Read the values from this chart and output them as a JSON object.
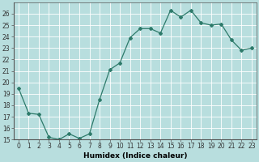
{
  "x": [
    0,
    1,
    2,
    3,
    4,
    5,
    6,
    7,
    8,
    9,
    10,
    11,
    12,
    13,
    14,
    15,
    16,
    17,
    18,
    19,
    20,
    21,
    22,
    23
  ],
  "y": [
    19.5,
    17.3,
    17.2,
    15.2,
    15.0,
    15.5,
    15.1,
    15.5,
    18.5,
    21.1,
    21.7,
    23.9,
    24.7,
    24.7,
    24.3,
    26.3,
    25.7,
    26.3,
    25.2,
    25.0,
    25.1,
    23.7,
    22.8,
    23.0
  ],
  "line_color": "#2d7a6a",
  "marker": "D",
  "marker_size": 2,
  "bg_color": "#b8dede",
  "grid_color": "#ffffff",
  "xlabel": "Humidex (Indice chaleur)",
  "ylim": [
    15,
    27
  ],
  "xlim": [
    -0.5,
    23.5
  ],
  "yticks": [
    15,
    16,
    17,
    18,
    19,
    20,
    21,
    22,
    23,
    24,
    25,
    26
  ],
  "xticks": [
    0,
    1,
    2,
    3,
    4,
    5,
    6,
    7,
    8,
    9,
    10,
    11,
    12,
    13,
    14,
    15,
    16,
    17,
    18,
    19,
    20,
    21,
    22,
    23
  ],
  "xlabel_fontsize": 6.5,
  "tick_fontsize": 5.5,
  "linewidth": 0.9
}
